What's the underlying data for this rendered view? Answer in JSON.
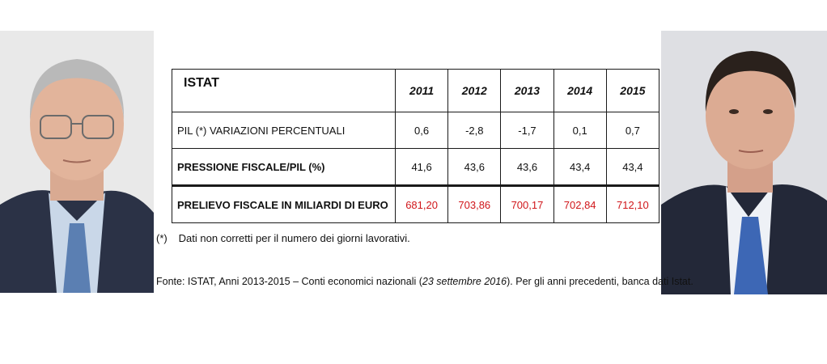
{
  "table": {
    "header_label": "ISTAT",
    "years": [
      "2011",
      "2012",
      "2013",
      "2014",
      "2015"
    ],
    "rows": [
      {
        "label": "PIL (*) VARIAZIONI PERCENTUALI",
        "values": [
          "0,6",
          "-2,8",
          "-1,7",
          "0,1",
          "0,7"
        ]
      },
      {
        "label": "PRESSIONE FISCALE/PIL (%)",
        "values": [
          "41,6",
          "43,6",
          "43,6",
          "43,4",
          "43,4"
        ]
      },
      {
        "label": "PRELIEVO FISCALE IN MILIARDI DI EURO",
        "values": [
          "681,20",
          "703,86",
          "700,17",
          "702,84",
          "712,10"
        ]
      }
    ]
  },
  "footnote": {
    "marker": "(*)",
    "text": "Dati non corretti per il numero dei giorni lavorativi."
  },
  "source": {
    "prefix": "Fonte: ISTAT, Anni 2013-2015 – Conti economici nazionali (",
    "date": "23 settembre 2016",
    "suffix": "). Per gli anni precedenti, banca dati Istat."
  },
  "colors": {
    "highlight_values": "#d0161a"
  }
}
